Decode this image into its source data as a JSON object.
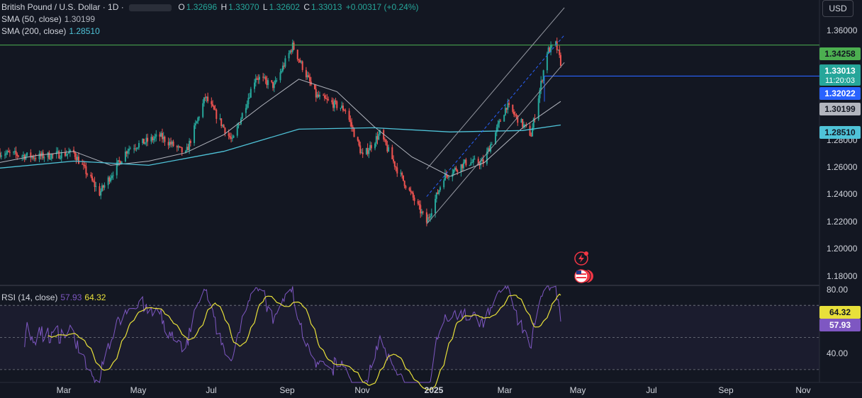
{
  "header": {
    "symbol_title": "British Pound / U.S. Dollar · 1D ·",
    "ohlc": {
      "open_label": "O",
      "open": "1.32696",
      "high_label": "H",
      "high": "1.33070",
      "low_label": "L",
      "low": "1.32602",
      "close_label": "C",
      "close": "1.33013",
      "change": "+0.00317 (+0.24%)"
    },
    "sma50": {
      "label": "SMA (50, close)",
      "value": "1.30199",
      "color": "#b2b5be"
    },
    "sma200": {
      "label": "SMA (200, close)",
      "value": "1.28510",
      "color": "#4fc3d8"
    }
  },
  "currency_button": "USD",
  "price_axis": {
    "ticks": [
      "1.36000",
      "1.28000",
      "1.26000",
      "1.24000",
      "1.22000",
      "1.20000",
      "1.18000"
    ],
    "ylim": [
      1.17,
      1.375
    ]
  },
  "price_tags": {
    "resistance": {
      "value": "1.34258",
      "color": "#4caf50"
    },
    "last": {
      "value": "1.33013",
      "countdown": "11:20:03",
      "color": "#26a69a"
    },
    "support": {
      "value": "1.32022",
      "color": "#2962ff"
    },
    "sma50": {
      "value": "1.30199",
      "color": "#b2b5be"
    },
    "sma200": {
      "value": "1.28510",
      "color": "#4fc3d8"
    }
  },
  "rsi": {
    "label": "RSI (14, close)",
    "value": "57.93",
    "ma_value": "64.32",
    "ticks": [
      "80.00",
      "40.00"
    ],
    "levels": [
      70,
      50,
      30
    ],
    "ylim": [
      22,
      82
    ],
    "line_color": "#7e57c2",
    "ma_color": "#e8e03a"
  },
  "time_axis": {
    "labels": [
      "Mar",
      "May",
      "Jul",
      "Sep",
      "Nov",
      "2025",
      "Mar",
      "May",
      "Jul",
      "Sep",
      "Nov"
    ]
  },
  "chart_data": {
    "type": "line",
    "title": "British Pound / U.S. Dollar · 1D",
    "xlabel": "",
    "ylabel": "",
    "ylim": [
      1.17,
      1.375
    ],
    "grid": false,
    "series": [
      {
        "name": "GBP/USD",
        "x": [
          "2024-02-01",
          "2024-03-01",
          "2024-04-01",
          "2024-04-22",
          "2024-05-15",
          "2024-06-10",
          "2024-07-01",
          "2024-07-17",
          "2024-08-08",
          "2024-08-27",
          "2024-09-11",
          "2024-09-26",
          "2024-10-15",
          "2024-11-08",
          "2024-11-22",
          "2024-12-06",
          "2024-12-20",
          "2025-01-13",
          "2025-01-27",
          "2025-02-14",
          "2025-02-28",
          "2025-03-19",
          "2025-04-08",
          "2025-04-21",
          "2025-04-28",
          "2025-05-02"
        ],
        "values": [
          1.265,
          1.262,
          1.265,
          1.236,
          1.268,
          1.277,
          1.264,
          1.305,
          1.273,
          1.32,
          1.313,
          1.342,
          1.306,
          1.296,
          1.262,
          1.279,
          1.253,
          1.215,
          1.248,
          1.258,
          1.258,
          1.299,
          1.278,
          1.338,
          1.343,
          1.33
        ]
      },
      {
        "name": "SMA (50, close)",
        "x": [
          "2024-02-01",
          "2024-03-01",
          "2024-04-01",
          "2024-05-01",
          "2024-06-01",
          "2024-07-01",
          "2024-08-01",
          "2024-09-01",
          "2024-10-01",
          "2024-11-01",
          "2024-12-01",
          "2025-01-01",
          "2025-02-01",
          "2025-03-01",
          "2025-04-01",
          "2025-05-02"
        ],
        "values": [
          1.258,
          1.263,
          1.266,
          1.256,
          1.259,
          1.265,
          1.278,
          1.299,
          1.318,
          1.309,
          1.284,
          1.262,
          1.248,
          1.258,
          1.283,
          1.302
        ]
      },
      {
        "name": "SMA (200, close)",
        "x": [
          "2024-02-01",
          "2024-04-01",
          "2024-06-01",
          "2024-08-01",
          "2024-10-01",
          "2024-12-01",
          "2025-02-01",
          "2025-04-01",
          "2025-05-02"
        ],
        "values": [
          1.254,
          1.259,
          1.256,
          1.266,
          1.282,
          1.283,
          1.28,
          1.281,
          1.285
        ]
      }
    ],
    "levels": [
      1.34258,
      1.32022
    ]
  }
}
